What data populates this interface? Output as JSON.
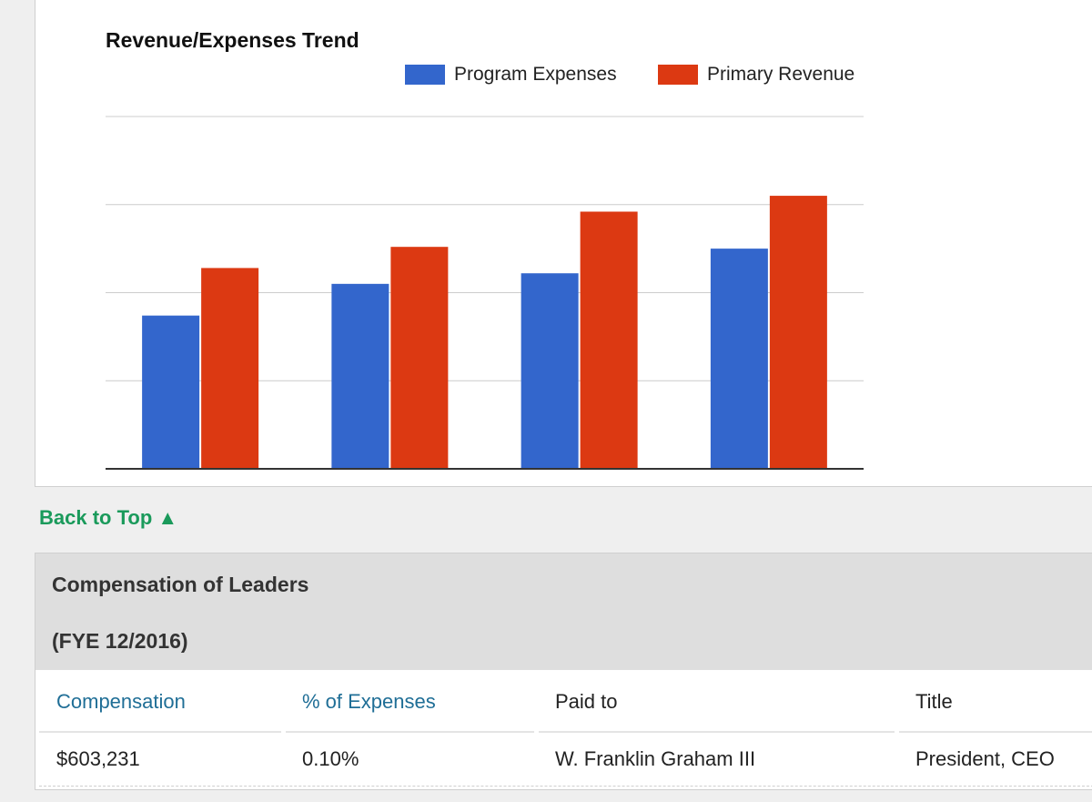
{
  "chart_data": {
    "type": "bar",
    "title": "Revenue/Expenses Trend",
    "xlabel": "",
    "ylabel": "",
    "categories": [
      "",
      "",
      "",
      ""
    ],
    "ylim": [
      0,
      4
    ],
    "grid": true,
    "legend_position": "top-right",
    "series": [
      {
        "name": "Program Expenses",
        "color": "#3366cc",
        "values": [
          1.74,
          2.1,
          2.22,
          2.5
        ]
      },
      {
        "name": "Primary Revenue",
        "color": "#dc3912",
        "values": [
          2.28,
          2.52,
          2.92,
          3.1
        ]
      }
    ]
  },
  "nav": {
    "back_to_top": "Back to Top ▲"
  },
  "compensation": {
    "title": "Compensation of Leaders",
    "period": "(FYE 12/2016)",
    "columns": [
      "Compensation",
      "% of Expenses",
      "Paid to",
      "Title"
    ],
    "rows": [
      [
        "$603,231",
        "0.10%",
        "W. Franklin Graham III",
        "President, CEO"
      ]
    ]
  }
}
